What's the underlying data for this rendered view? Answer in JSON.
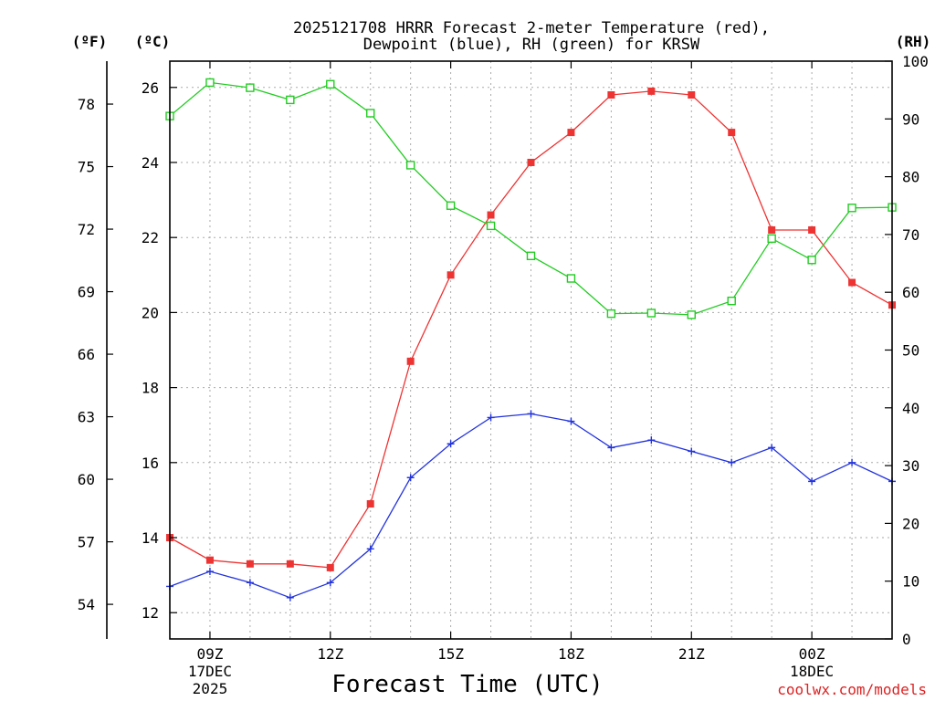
{
  "chart_data": {
    "type": "line",
    "title_line1": "2025121708 HRRR Forecast 2-meter Temperature (red),",
    "title_line2": "Dewpoint (blue), RH (green) for KRSW",
    "xlabel": "Forecast Time (UTC)",
    "watermark": "coolwx.com/models",
    "unit_labels": {
      "fahrenheit": "(ºF)",
      "celsius": "(ºC)",
      "rh": "(RH)"
    },
    "x_hours": [
      8,
      9,
      10,
      11,
      12,
      13,
      14,
      15,
      16,
      17,
      18,
      19,
      20,
      21,
      22,
      23,
      24,
      25,
      26
    ],
    "xlim": [
      8,
      26
    ],
    "x_ticks": [
      {
        "hour": 9,
        "label": "09Z",
        "date": "17DEC",
        "year": "2025"
      },
      {
        "hour": 12,
        "label": "12Z"
      },
      {
        "hour": 15,
        "label": "15Z"
      },
      {
        "hour": 18,
        "label": "18Z"
      },
      {
        "hour": 21,
        "label": "21Z"
      },
      {
        "hour": 24,
        "label": "00Z",
        "date": "18DEC"
      }
    ],
    "axes": {
      "celsius": {
        "lim": [
          11.3,
          26.7
        ],
        "ticks": [
          "12",
          "14",
          "16",
          "18",
          "20",
          "22",
          "24",
          "26"
        ]
      },
      "fahrenheit": {
        "ticks": [
          "54",
          "57",
          "60",
          "63",
          "66",
          "69",
          "72",
          "75",
          "78"
        ]
      },
      "rh": {
        "lim": [
          0,
          100
        ],
        "ticks": [
          "0",
          "10",
          "20",
          "30",
          "40",
          "50",
          "60",
          "70",
          "80",
          "90",
          "100"
        ]
      }
    },
    "series": [
      {
        "name": "Temperature",
        "unit": "C",
        "axis": "celsius",
        "color": "#ee3333",
        "marker": "filled-square",
        "values": [
          14.0,
          13.4,
          13.3,
          13.3,
          13.2,
          14.9,
          18.7,
          21.0,
          22.6,
          24.0,
          24.8,
          25.8,
          25.9,
          25.8,
          24.8,
          22.2,
          22.2,
          20.8,
          20.2
        ]
      },
      {
        "name": "Dewpoint",
        "unit": "C",
        "axis": "celsius",
        "color": "#2233dd",
        "marker": "plus",
        "values": [
          12.7,
          13.1,
          12.8,
          12.4,
          12.8,
          13.7,
          15.6,
          16.5,
          17.2,
          17.3,
          17.1,
          16.4,
          16.6,
          16.3,
          16.0,
          16.4,
          15.5,
          16.0,
          15.5
        ]
      },
      {
        "name": "RH",
        "unit": "%",
        "axis": "rh",
        "color": "#22cc22",
        "marker": "open-square",
        "values": [
          90.5,
          96.3,
          95.4,
          93.3,
          96.0,
          91.0,
          82.0,
          75.0,
          71.5,
          66.3,
          62.4,
          56.3,
          56.4,
          56.1,
          58.5,
          69.3,
          65.6,
          74.6,
          74.7
        ]
      }
    ],
    "grid": true
  }
}
